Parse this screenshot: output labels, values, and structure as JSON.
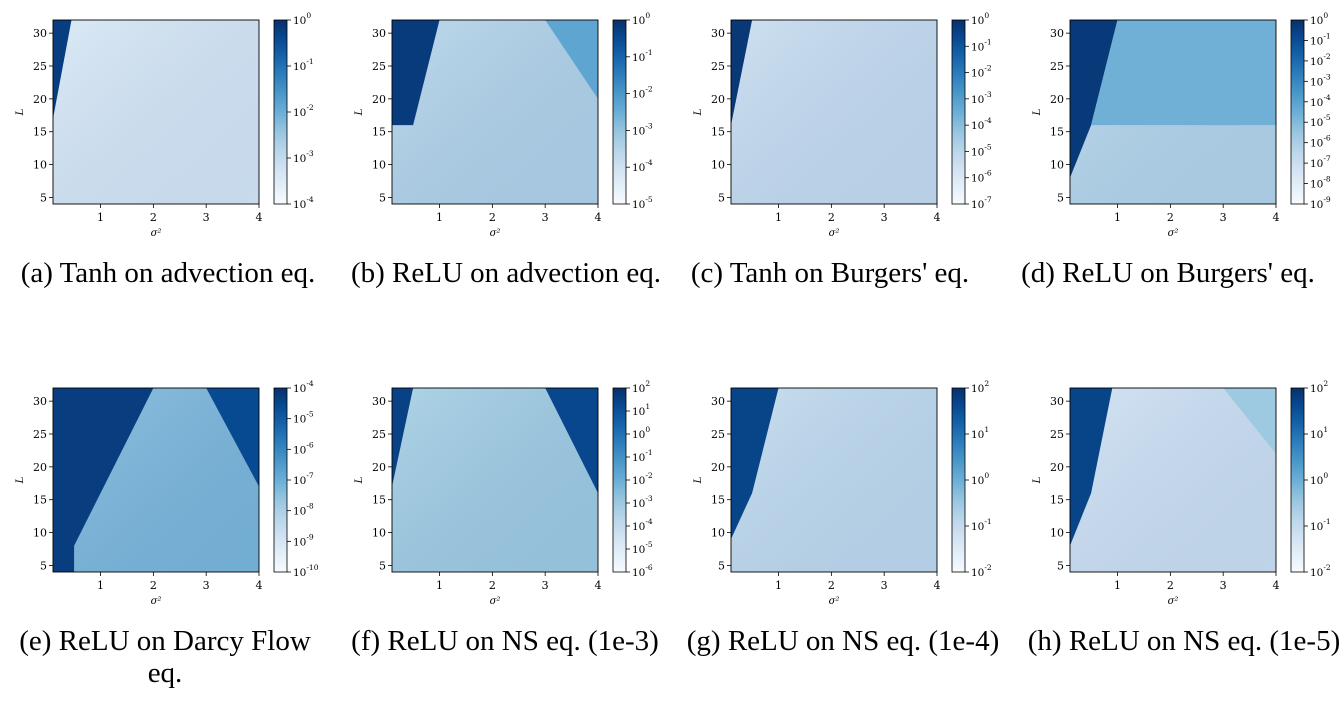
{
  "chart_data": [
    {
      "type": "heatmap",
      "id": "a",
      "caption": "(a) Tanh on advection eq.",
      "xlabel": "σ²",
      "ylabel": "L",
      "xlim": [
        0.1,
        4
      ],
      "ylim": [
        4,
        32
      ],
      "xticks": [
        "1",
        "2",
        "3",
        "4"
      ],
      "yticks": [
        "5",
        "10",
        "15",
        "20",
        "25",
        "30"
      ],
      "colorbar": {
        "scale": "log",
        "ticks": [
          "10^0",
          "10^-1",
          "10^-2",
          "10^-3",
          "10^-4"
        ]
      },
      "regions": [
        {
          "name": "high-error corner",
          "points": [
            [
              0.1,
              17
            ],
            [
              0.1,
              32
            ],
            [
              0.45,
              32
            ]
          ],
          "log_value": -0.2
        }
      ],
      "background_log_value": -3.3
    },
    {
      "type": "heatmap",
      "id": "b",
      "caption": "(b) ReLU on advection eq.",
      "xlabel": "σ²",
      "ylabel": "L",
      "xlim": [
        0.1,
        4
      ],
      "ylim": [
        4,
        32
      ],
      "xticks": [
        "1",
        "2",
        "3",
        "4"
      ],
      "yticks": [
        "5",
        "10",
        "15",
        "20",
        "25",
        "30"
      ],
      "colorbar": {
        "scale": "log",
        "ticks": [
          "10^0",
          "10^-1",
          "10^-2",
          "10^-3",
          "10^-4",
          "10^-5"
        ]
      },
      "regions": [
        {
          "name": "high-error left block",
          "points": [
            [
              0.1,
              16
            ],
            [
              0.1,
              32
            ],
            [
              1.0,
              32
            ],
            [
              0.5,
              16
            ]
          ],
          "log_value": -0.2
        },
        {
          "name": "upper-right corner",
          "points": [
            [
              3.0,
              32
            ],
            [
              4.0,
              32
            ],
            [
              4.0,
              20
            ]
          ],
          "log_value": -2.3
        }
      ],
      "background_log_value": -3.4
    },
    {
      "type": "heatmap",
      "id": "c",
      "caption": "(c) Tanh on Burgers' eq.",
      "xlabel": "σ²",
      "ylabel": "L",
      "xlim": [
        0.1,
        4
      ],
      "ylim": [
        4,
        32
      ],
      "xticks": [
        "1",
        "2",
        "3",
        "4"
      ],
      "yticks": [
        "5",
        "10",
        "15",
        "20",
        "25",
        "30"
      ],
      "colorbar": {
        "scale": "log",
        "ticks": [
          "10^0",
          "10^-1",
          "10^-2",
          "10^-3",
          "10^-4",
          "10^-5",
          "10^-6",
          "10^-7"
        ]
      },
      "regions": [
        {
          "name": "high-error corner",
          "points": [
            [
              0.1,
              16
            ],
            [
              0.1,
              32
            ],
            [
              0.5,
              32
            ]
          ],
          "log_value": -0.2
        }
      ],
      "background_log_value": -5.2
    },
    {
      "type": "heatmap",
      "id": "d",
      "caption": "(d) ReLU on Burgers' eq.",
      "xlabel": "σ²",
      "ylabel": "L",
      "xlim": [
        0.1,
        4
      ],
      "ylim": [
        4,
        32
      ],
      "xticks": [
        "1",
        "2",
        "3",
        "4"
      ],
      "yticks": [
        "5",
        "10",
        "15",
        "20",
        "25",
        "30"
      ],
      "colorbar": {
        "scale": "log",
        "ticks": [
          "10^0",
          "10^-1",
          "10^-2",
          "10^-3",
          "10^-4",
          "10^-5",
          "10^-6",
          "10^-7",
          "10^-8",
          "10^-9"
        ]
      },
      "regions": [
        {
          "name": "high-error wedge",
          "points": [
            [
              0.1,
              8
            ],
            [
              0.1,
              32
            ],
            [
              1.0,
              32
            ],
            [
              0.5,
              16
            ]
          ],
          "log_value": -0.3
        },
        {
          "name": "upper band",
          "points": [
            [
              1.0,
              32
            ],
            [
              4.0,
              32
            ],
            [
              4.0,
              16
            ],
            [
              0.5,
              16
            ]
          ],
          "log_value": -4.6
        }
      ],
      "background_log_value": -6.2
    },
    {
      "type": "heatmap",
      "id": "e",
      "caption": "(e) ReLU on Darcy Flow eq.",
      "xlabel": "σ²",
      "ylabel": "L",
      "xlim": [
        0.1,
        4
      ],
      "ylim": [
        4,
        32
      ],
      "xticks": [
        "1",
        "2",
        "3",
        "4"
      ],
      "yticks": [
        "5",
        "10",
        "15",
        "20",
        "25",
        "30"
      ],
      "colorbar": {
        "scale": "log",
        "ticks": [
          "10^-4",
          "10^-5",
          "10^-6",
          "10^-7",
          "10^-8",
          "10^-9",
          "10^-10"
        ]
      },
      "regions": [
        {
          "name": "left high-error region",
          "points": [
            [
              0.1,
              4
            ],
            [
              0.1,
              32
            ],
            [
              2.0,
              32
            ],
            [
              0.5,
              8
            ],
            [
              0.5,
              4
            ]
          ],
          "log_value": -4.3
        },
        {
          "name": "right high-error region",
          "points": [
            [
              3.0,
              32
            ],
            [
              4.0,
              32
            ],
            [
              4.0,
              17
            ]
          ],
          "log_value": -4.6
        }
      ],
      "background_log_value": -7.2
    },
    {
      "type": "heatmap",
      "id": "f",
      "caption": "(f) ReLU on NS eq. (1e-3)",
      "xlabel": "σ²",
      "ylabel": "L",
      "xlim": [
        0.1,
        4
      ],
      "ylim": [
        4,
        32
      ],
      "xticks": [
        "1",
        "2",
        "3",
        "4"
      ],
      "yticks": [
        "5",
        "10",
        "15",
        "20",
        "25",
        "30"
      ],
      "colorbar": {
        "scale": "log",
        "ticks": [
          "10^2",
          "10^1",
          "10^0",
          "10^-1",
          "10^-2",
          "10^-3",
          "10^-4",
          "10^-5",
          "10^-6"
        ]
      },
      "regions": [
        {
          "name": "left corner",
          "points": [
            [
              0.1,
              17
            ],
            [
              0.1,
              32
            ],
            [
              0.5,
              32
            ]
          ],
          "log_value": 1.5
        },
        {
          "name": "right corner",
          "points": [
            [
              3.0,
              32
            ],
            [
              4.0,
              32
            ],
            [
              4.0,
              16
            ]
          ],
          "log_value": 1.3
        }
      ],
      "background_log_value": -3.0
    },
    {
      "type": "heatmap",
      "id": "g",
      "caption": "(g) ReLU on NS eq. (1e-4)",
      "xlabel": "σ²",
      "ylabel": "L",
      "xlim": [
        0.1,
        4
      ],
      "ylim": [
        4,
        32
      ],
      "xticks": [
        "1",
        "2",
        "3",
        "4"
      ],
      "yticks": [
        "5",
        "10",
        "15",
        "20",
        "25",
        "30"
      ],
      "colorbar": {
        "scale": "log",
        "ticks": [
          "10^2",
          "10^1",
          "10^0",
          "10^-1",
          "10^-2"
        ]
      },
      "regions": [
        {
          "name": "high-error wedge",
          "points": [
            [
              0.1,
              9
            ],
            [
              0.1,
              32
            ],
            [
              1.0,
              32
            ],
            [
              0.5,
              16
            ]
          ],
          "log_value": 1.7
        }
      ],
      "background_log_value": -0.9
    },
    {
      "type": "heatmap",
      "id": "h",
      "caption": "(h) ReLU on NS eq. (1e-5)",
      "xlabel": "σ²",
      "ylabel": "L",
      "xlim": [
        0.1,
        4
      ],
      "ylim": [
        4,
        32
      ],
      "xticks": [
        "1",
        "2",
        "3",
        "4"
      ],
      "yticks": [
        "5",
        "10",
        "15",
        "20",
        "25",
        "30"
      ],
      "colorbar": {
        "scale": "log",
        "ticks": [
          "10^2",
          "10^1",
          "10^0",
          "10^-1",
          "10^-2"
        ]
      },
      "regions": [
        {
          "name": "high-error wedge",
          "points": [
            [
              0.1,
              8
            ],
            [
              0.1,
              32
            ],
            [
              0.9,
              32
            ],
            [
              0.5,
              16
            ]
          ],
          "log_value": 1.7
        },
        {
          "name": "upper-right corner",
          "points": [
            [
              3.0,
              32
            ],
            [
              4.0,
              32
            ],
            [
              4.0,
              22
            ]
          ],
          "log_value": -0.5
        }
      ],
      "background_log_value": -1.1
    }
  ]
}
